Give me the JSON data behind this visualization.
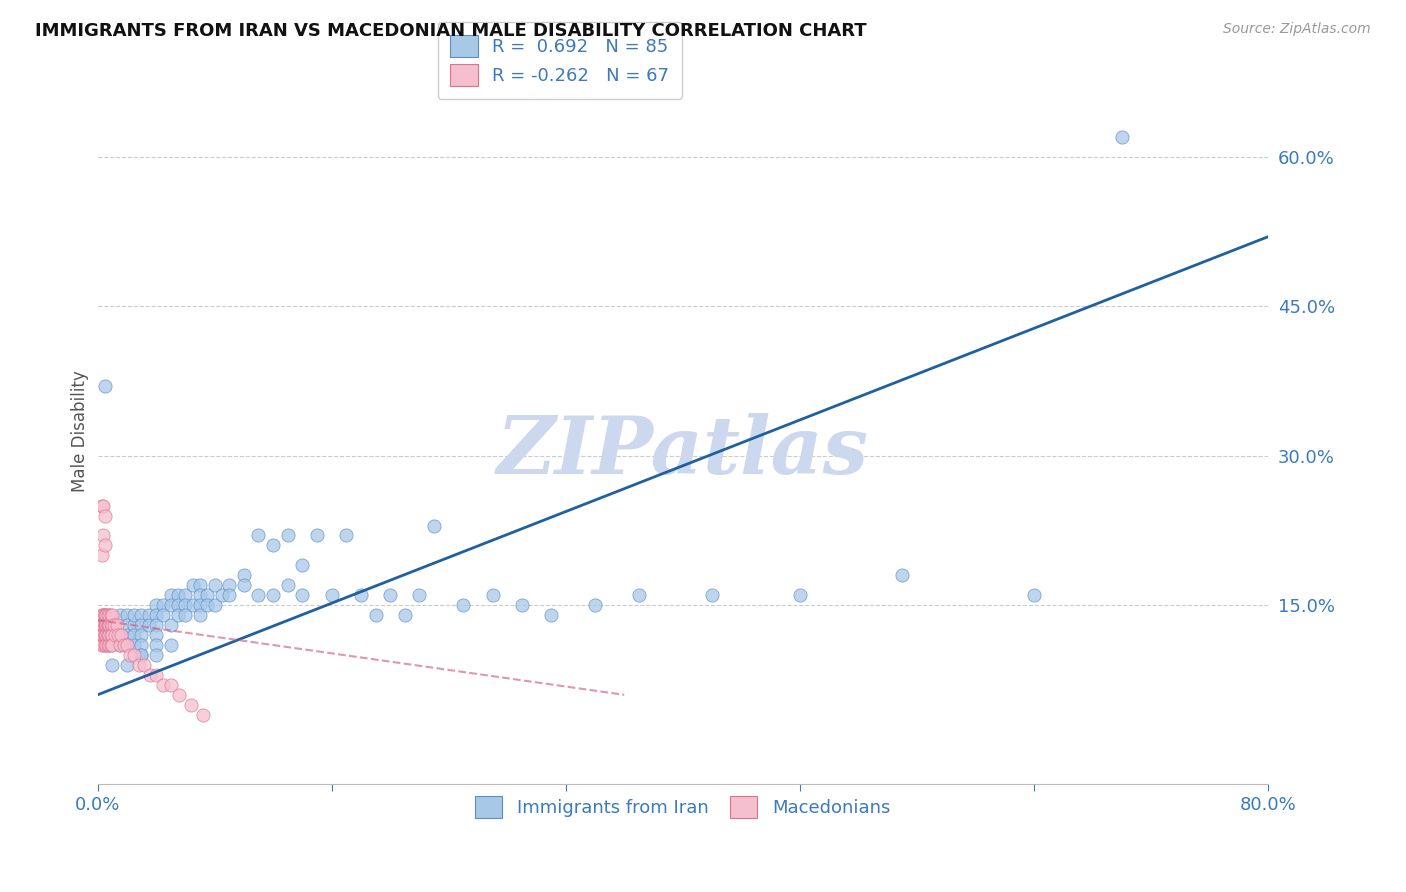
{
  "title": "IMMIGRANTS FROM IRAN VS MACEDONIAN MALE DISABILITY CORRELATION CHART",
  "source": "Source: ZipAtlas.com",
  "ylabel": "Male Disability",
  "xlim": [
    0.0,
    0.8
  ],
  "ylim": [
    -0.03,
    0.68
  ],
  "x_ticks": [
    0.0,
    0.16,
    0.32,
    0.48,
    0.64,
    0.8
  ],
  "x_tick_labels": [
    "0.0%",
    "",
    "",
    "",
    "",
    "80.0%"
  ],
  "y_tick_right": [
    0.15,
    0.3,
    0.45,
    0.6
  ],
  "y_tick_right_labels": [
    "15.0%",
    "30.0%",
    "45.0%",
    "60.0%"
  ],
  "blue_R": 0.692,
  "blue_N": 85,
  "pink_R": -0.262,
  "pink_N": 67,
  "blue_color": "#a8c8e8",
  "blue_edge_color": "#5b8fc9",
  "blue_line_color": "#2060a0",
  "pink_color": "#f5bfcf",
  "pink_edge_color": "#e07090",
  "pink_line_color": "#d06080",
  "legend_label_blue": "Immigrants from Iran",
  "legend_label_pink": "Macedonians",
  "watermark": "ZIPatlas",
  "watermark_color": "#ccd8ee",
  "blue_line_x0": 0.0,
  "blue_line_y0": 0.06,
  "blue_line_x1": 0.8,
  "blue_line_y1": 0.52,
  "pink_line_x0": 0.0,
  "pink_line_y0": 0.135,
  "pink_line_x1": 0.36,
  "pink_line_y1": 0.06,
  "blue_scatter_x": [
    0.005,
    0.01,
    0.01,
    0.015,
    0.015,
    0.015,
    0.02,
    0.02,
    0.02,
    0.02,
    0.025,
    0.025,
    0.025,
    0.025,
    0.03,
    0.03,
    0.03,
    0.03,
    0.03,
    0.035,
    0.035,
    0.04,
    0.04,
    0.04,
    0.04,
    0.04,
    0.045,
    0.045,
    0.05,
    0.05,
    0.05,
    0.055,
    0.055,
    0.055,
    0.06,
    0.06,
    0.06,
    0.065,
    0.065,
    0.07,
    0.07,
    0.07,
    0.07,
    0.075,
    0.075,
    0.08,
    0.08,
    0.085,
    0.09,
    0.09,
    0.1,
    0.1,
    0.11,
    0.11,
    0.12,
    0.12,
    0.13,
    0.13,
    0.14,
    0.14,
    0.15,
    0.16,
    0.17,
    0.18,
    0.19,
    0.2,
    0.21,
    0.22,
    0.23,
    0.25,
    0.27,
    0.29,
    0.31,
    0.34,
    0.37,
    0.42,
    0.48,
    0.55,
    0.64,
    0.7,
    0.01,
    0.02,
    0.03,
    0.04,
    0.05
  ],
  "blue_scatter_y": [
    0.37,
    0.13,
    0.12,
    0.14,
    0.12,
    0.11,
    0.14,
    0.13,
    0.12,
    0.11,
    0.13,
    0.14,
    0.12,
    0.11,
    0.14,
    0.13,
    0.12,
    0.11,
    0.1,
    0.14,
    0.13,
    0.15,
    0.14,
    0.13,
    0.12,
    0.11,
    0.15,
    0.14,
    0.16,
    0.15,
    0.13,
    0.16,
    0.15,
    0.14,
    0.16,
    0.15,
    0.14,
    0.17,
    0.15,
    0.17,
    0.16,
    0.15,
    0.14,
    0.16,
    0.15,
    0.17,
    0.15,
    0.16,
    0.17,
    0.16,
    0.18,
    0.17,
    0.22,
    0.16,
    0.21,
    0.16,
    0.22,
    0.17,
    0.19,
    0.16,
    0.22,
    0.16,
    0.22,
    0.16,
    0.14,
    0.16,
    0.14,
    0.16,
    0.23,
    0.15,
    0.16,
    0.15,
    0.14,
    0.15,
    0.16,
    0.16,
    0.16,
    0.18,
    0.16,
    0.62,
    0.09,
    0.09,
    0.1,
    0.1,
    0.11
  ],
  "pink_scatter_x": [
    0.003,
    0.003,
    0.003,
    0.003,
    0.003,
    0.004,
    0.004,
    0.004,
    0.004,
    0.004,
    0.004,
    0.004,
    0.004,
    0.005,
    0.005,
    0.005,
    0.005,
    0.005,
    0.005,
    0.005,
    0.005,
    0.006,
    0.006,
    0.006,
    0.006,
    0.006,
    0.007,
    0.007,
    0.007,
    0.007,
    0.007,
    0.007,
    0.008,
    0.008,
    0.008,
    0.008,
    0.008,
    0.009,
    0.009,
    0.009,
    0.009,
    0.01,
    0.01,
    0.01,
    0.01,
    0.011,
    0.012,
    0.013,
    0.014,
    0.015,
    0.016,
    0.018,
    0.02,
    0.022,
    0.025,
    0.028,
    0.032,
    0.036,
    0.04,
    0.045,
    0.05,
    0.056,
    0.064,
    0.072,
    0.003,
    0.004,
    0.005
  ],
  "pink_scatter_y": [
    0.14,
    0.13,
    0.12,
    0.25,
    0.11,
    0.14,
    0.13,
    0.12,
    0.11,
    0.25,
    0.14,
    0.13,
    0.12,
    0.14,
    0.13,
    0.12,
    0.11,
    0.14,
    0.13,
    0.12,
    0.24,
    0.14,
    0.13,
    0.12,
    0.11,
    0.13,
    0.14,
    0.13,
    0.12,
    0.11,
    0.13,
    0.12,
    0.14,
    0.13,
    0.12,
    0.11,
    0.13,
    0.14,
    0.13,
    0.12,
    0.11,
    0.13,
    0.12,
    0.11,
    0.14,
    0.13,
    0.12,
    0.13,
    0.12,
    0.11,
    0.12,
    0.11,
    0.11,
    0.1,
    0.1,
    0.09,
    0.09,
    0.08,
    0.08,
    0.07,
    0.07,
    0.06,
    0.05,
    0.04,
    0.2,
    0.22,
    0.21
  ]
}
